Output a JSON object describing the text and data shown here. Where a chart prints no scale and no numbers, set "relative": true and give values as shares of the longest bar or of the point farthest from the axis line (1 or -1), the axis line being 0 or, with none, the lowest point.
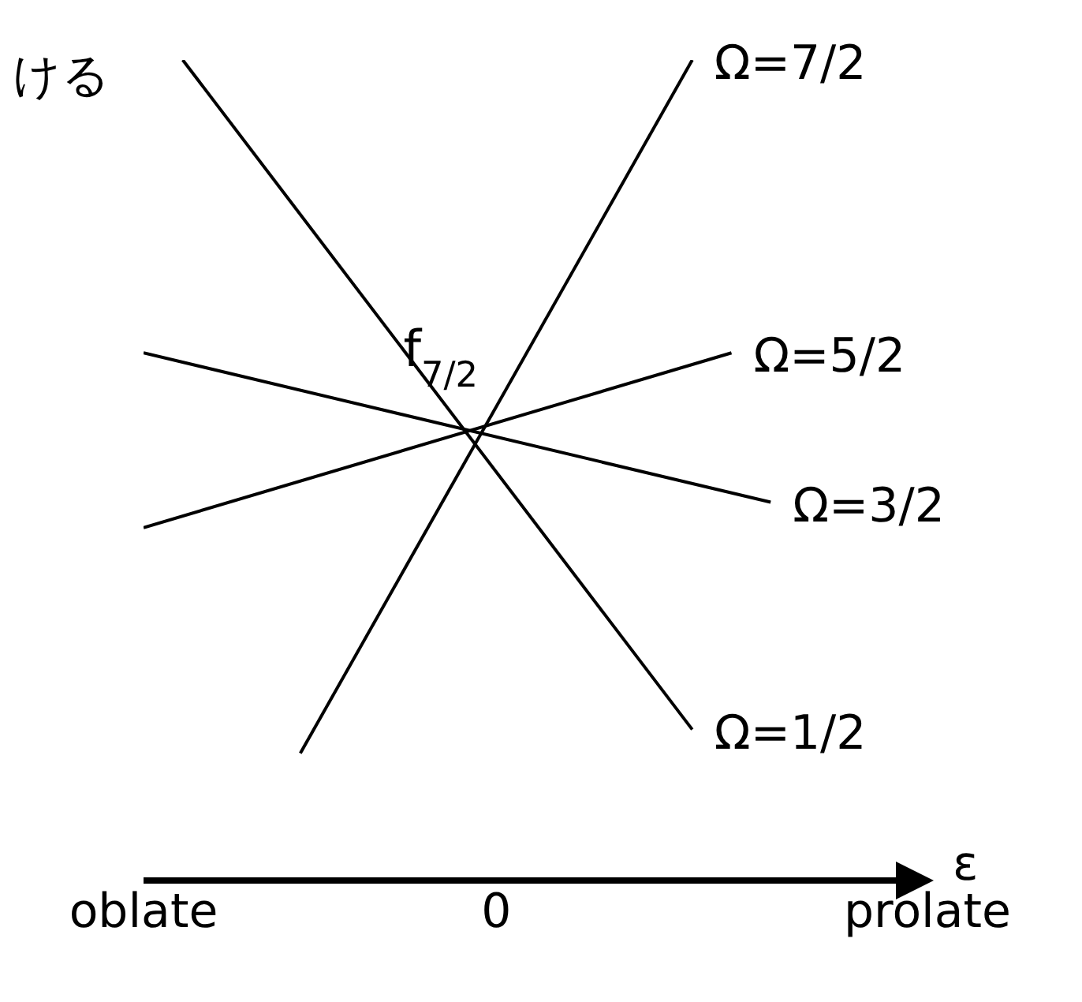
{
  "chart_data": {
    "type": "line",
    "relative": true,
    "xlabel": "ε",
    "categories": [
      "oblate",
      null,
      null,
      null,
      null,
      null,
      null,
      null,
      null,
      "0",
      null,
      null,
      null,
      null,
      null,
      null,
      null,
      null,
      null,
      null,
      "prolate"
    ],
    "grid": false,
    "legend": false,
    "marker": "none",
    "line_style": "solid",
    "series": [
      {
        "name": "Ω=7/2",
        "color": "#000000",
        "values": [
          null,
          null,
          null,
          null,
          0.155,
          null,
          null,
          null,
          null,
          null,
          null,
          null,
          null,
          null,
          1,
          null,
          null,
          null,
          null,
          null,
          null
        ]
      },
      {
        "name": "Ω=5/2",
        "color": "#000000",
        "values": [
          0.43,
          null,
          null,
          null,
          null,
          null,
          null,
          null,
          null,
          null,
          null,
          null,
          null,
          null,
          null,
          0.643,
          null,
          null,
          null,
          null,
          null
        ]
      },
      {
        "name": "Ω=3/2",
        "color": "#000000",
        "values": [
          0.643,
          null,
          null,
          null,
          null,
          null,
          null,
          null,
          null,
          null,
          null,
          null,
          null,
          null,
          null,
          null,
          0.461,
          null,
          null,
          null,
          null
        ]
      },
      {
        "name": "Ω=1/2",
        "color": "#000000",
        "values": [
          null,
          1,
          null,
          null,
          null,
          null,
          null,
          null,
          null,
          null,
          null,
          null,
          null,
          null,
          0.184,
          null,
          null,
          null,
          null,
          null,
          null
        ]
      }
    ],
    "annotations": [
      "ける",
      {
        "text": "f$_{7/2}$"
      }
    ]
  }
}
